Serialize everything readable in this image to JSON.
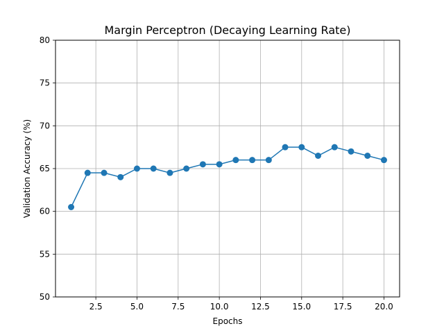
{
  "chart_data": {
    "type": "line",
    "title": "Margin Perceptron (Decaying Learning Rate)",
    "xlabel": "Epochs",
    "ylabel": "Validation Accuracy (%)",
    "xlim": [
      0.05,
      20.95
    ],
    "ylim": [
      50,
      80
    ],
    "x_ticks": [
      2.5,
      5.0,
      7.5,
      10.0,
      12.5,
      15.0,
      17.5,
      20.0
    ],
    "x_tick_labels": [
      "2.5",
      "5.0",
      "7.5",
      "10.0",
      "12.5",
      "15.0",
      "17.5",
      "20.0"
    ],
    "y_ticks": [
      50,
      55,
      60,
      65,
      70,
      75,
      80
    ],
    "y_tick_labels": [
      "50",
      "55",
      "60",
      "65",
      "70",
      "75",
      "80"
    ],
    "grid": true,
    "series": [
      {
        "color": "#1f77b4",
        "marker": "circle",
        "x": [
          1,
          2,
          3,
          4,
          5,
          6,
          7,
          8,
          9,
          10,
          11,
          12,
          13,
          14,
          15,
          16,
          17,
          18,
          19,
          20
        ],
        "y": [
          60.5,
          64.5,
          64.5,
          64.0,
          65.0,
          65.0,
          64.5,
          65.0,
          65.5,
          65.5,
          66.0,
          66.0,
          66.0,
          67.5,
          67.5,
          66.5,
          67.5,
          67.0,
          66.5,
          66.0
        ]
      }
    ]
  }
}
